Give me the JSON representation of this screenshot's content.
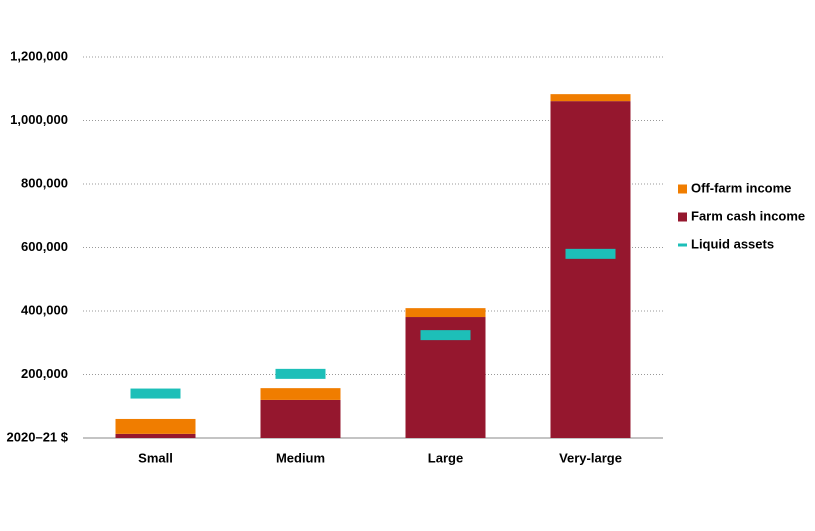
{
  "chart_data": {
    "type": "bar",
    "stacked": true,
    "ylabel": "2020–21 $",
    "categories": [
      "Small",
      "Medium",
      "Large",
      "Very-large"
    ],
    "series": [
      {
        "name": "Off-farm income",
        "color": "#f07d00",
        "kind": "bar",
        "values": [
          47000,
          37000,
          28000,
          22000
        ]
      },
      {
        "name": "Farm cash income",
        "color": "#95172e",
        "kind": "bar",
        "values": [
          13000,
          120000,
          381000,
          1061000
        ]
      },
      {
        "name": "Liquid assets",
        "color": "#1dbfb8",
        "kind": "dash",
        "values": [
          140000,
          202000,
          324000,
          580000
        ]
      }
    ],
    "ylim": [
      0,
      1200000
    ],
    "yticks": [
      {
        "value": 200000,
        "label": "200,000"
      },
      {
        "value": 400000,
        "label": "400,000"
      },
      {
        "value": 600000,
        "label": "600,000"
      },
      {
        "value": 800000,
        "label": "800,000"
      },
      {
        "value": 1000000,
        "label": "1,000,000"
      },
      {
        "value": 1200000,
        "label": "1,200,000"
      }
    ],
    "grid": true,
    "legend": "right"
  }
}
